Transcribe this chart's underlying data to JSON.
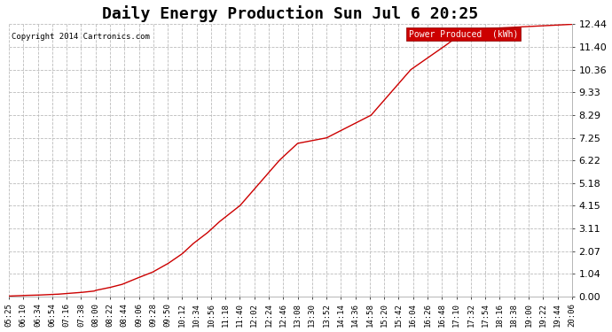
{
  "title": "Daily Energy Production Sun Jul 6 20:25",
  "copyright": "Copyright 2014 Cartronics.com",
  "legend_label": "Power Produced  (kWh)",
  "legend_bg": "#cc0000",
  "legend_fg": "#ffffff",
  "line_color": "#cc0000",
  "bg_color": "#ffffff",
  "plot_bg": "#ffffff",
  "ylim": [
    0.0,
    12.44
  ],
  "yticks": [
    0.0,
    1.04,
    2.07,
    3.11,
    4.15,
    5.18,
    6.22,
    7.25,
    8.29,
    9.33,
    10.36,
    11.4,
    12.44
  ],
  "xtick_labels": [
    "05:25",
    "06:10",
    "06:34",
    "06:54",
    "07:16",
    "07:38",
    "08:00",
    "08:22",
    "08:44",
    "09:06",
    "09:28",
    "09:50",
    "10:12",
    "10:34",
    "10:56",
    "11:18",
    "11:40",
    "12:02",
    "12:24",
    "12:46",
    "13:08",
    "13:30",
    "13:52",
    "14:14",
    "14:36",
    "14:58",
    "15:20",
    "15:42",
    "16:04",
    "16:26",
    "16:48",
    "17:10",
    "17:32",
    "17:54",
    "18:16",
    "18:38",
    "19:00",
    "19:22",
    "19:44",
    "20:06"
  ],
  "grid_color": "#bbbbbb",
  "grid_style": "--",
  "title_fontsize": 13,
  "axis_fontsize": 6.5,
  "ylabel_fontsize": 8
}
